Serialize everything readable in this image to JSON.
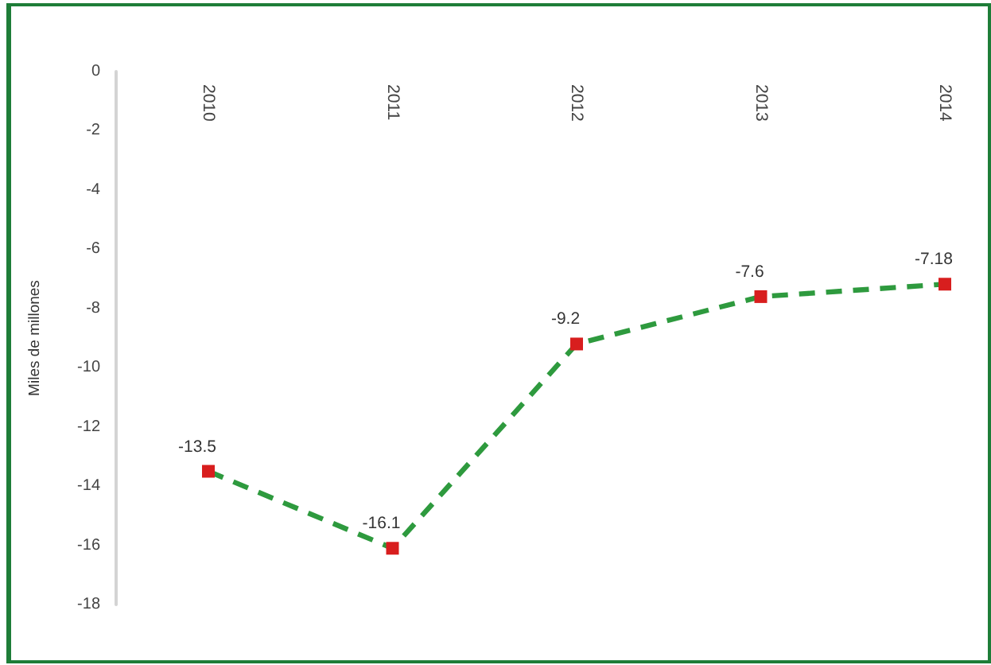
{
  "chart_data": {
    "type": "line",
    "ylabel": "Miles de millones",
    "categories": [
      "2010",
      "2011",
      "2012",
      "2013",
      "2014"
    ],
    "values": [
      -13.5,
      -16.1,
      -9.2,
      -7.6,
      -7.18
    ],
    "color": "#2e9a3e",
    "colors": [
      "#d81e1e",
      "#d81e1e",
      "#d81e1e",
      "#d81e1e",
      "#d81e1e"
    ],
    "ylim": [
      -18,
      0
    ],
    "yticks": [
      -18,
      -16,
      -14,
      -12,
      -10,
      -8,
      -6,
      -4,
      -2,
      0
    ],
    "grid": false,
    "marker": "square",
    "line_style": "dashed",
    "data_labels": true
  }
}
